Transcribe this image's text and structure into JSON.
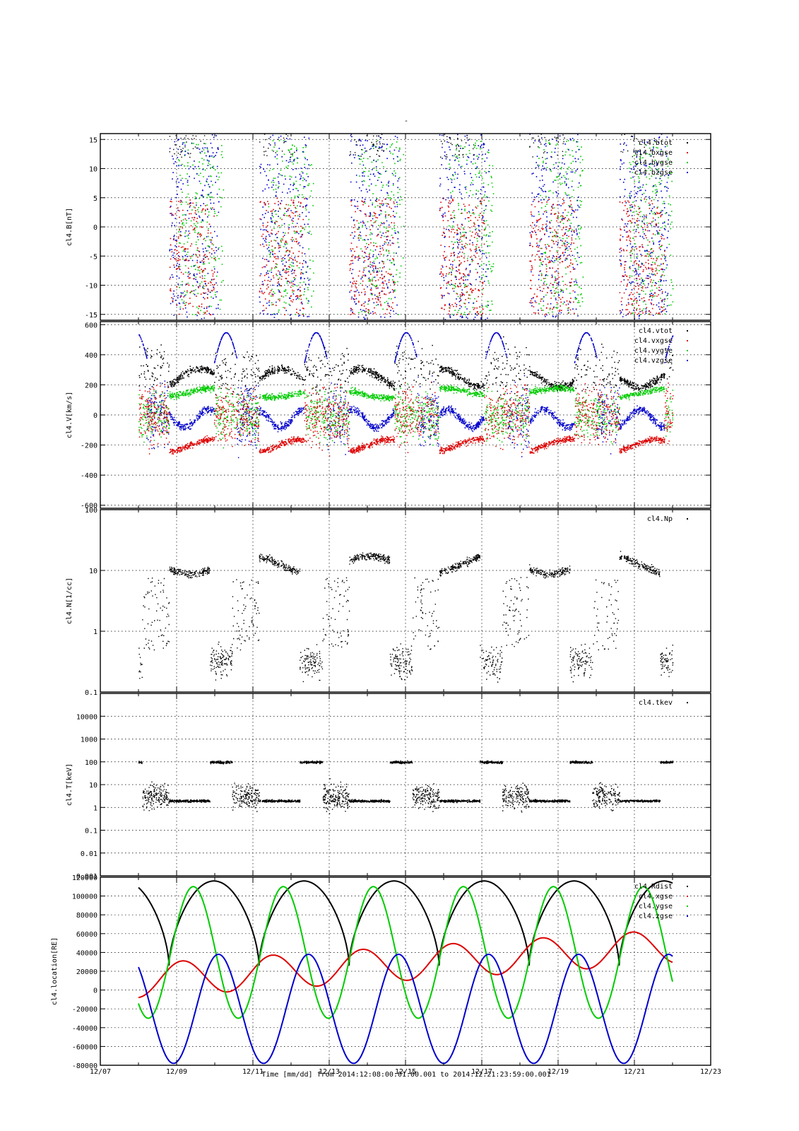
{
  "chart_data": [
    {
      "type": "scatter",
      "ylabel": "cl4.B[nT]",
      "ylim": [
        -16,
        16
      ],
      "yscale": "linear",
      "yticks": [
        "15",
        "10",
        "5",
        "0",
        "-5",
        "-10",
        "-15"
      ],
      "grid": true,
      "legend_position": "top-right",
      "series": [
        {
          "name": "cl4.btot",
          "color": "#000000"
        },
        {
          "name": "cl4.bxgse",
          "color": "#dd0000"
        },
        {
          "name": "cl4.bygse",
          "color": "#00cc00"
        },
        {
          "name": "cl4.bzgse",
          "color": "#0000cc"
        }
      ]
    },
    {
      "type": "scatter",
      "ylabel": "cl4.V[km/s]",
      "ylim": [
        -620,
        620
      ],
      "yscale": "linear",
      "yticks": [
        "600",
        "400",
        "200",
        "0",
        "-200",
        "-400",
        "-600"
      ],
      "grid": true,
      "legend_position": "top-right",
      "series": [
        {
          "name": "cl4.vtot",
          "color": "#000000"
        },
        {
          "name": "cl4.vxgse",
          "color": "#dd0000"
        },
        {
          "name": "cl4.vygse",
          "color": "#00cc00"
        },
        {
          "name": "cl4.vzgse",
          "color": "#0000cc"
        }
      ]
    },
    {
      "type": "scatter",
      "ylabel": "cl4.N[1/cc]",
      "ylim": [
        0.1,
        100
      ],
      "yscale": "log",
      "yticks": [
        "100",
        "10",
        "1",
        "0.1"
      ],
      "grid": true,
      "legend_position": "top-right",
      "series": [
        {
          "name": "cl4.Np",
          "color": "#000000"
        }
      ]
    },
    {
      "type": "scatter",
      "ylabel": "cl4.T[keV]",
      "ylim": [
        0.001,
        100000
      ],
      "yscale": "log",
      "yticks": [
        "10000",
        "1000",
        "100",
        "10",
        "1",
        "0.1",
        "0.01",
        "0.001"
      ],
      "grid": true,
      "legend_position": "top-right",
      "series": [
        {
          "name": "cl4.tkev",
          "color": "#000000"
        }
      ]
    },
    {
      "type": "line",
      "ylabel": "cl4.location[RE]",
      "ylim": [
        -80000,
        120000
      ],
      "yscale": "linear",
      "yticks": [
        "120000",
        "100000",
        "80000",
        "60000",
        "40000",
        "20000",
        "0",
        "-20000",
        "-40000",
        "-60000",
        "-80000"
      ],
      "grid": true,
      "legend_position": "top-right",
      "series": [
        {
          "name": "cl4.Rdist",
          "color": "#000000"
        },
        {
          "name": "cl4.xgse",
          "color": "#dd0000"
        },
        {
          "name": "cl4.ygse",
          "color": "#00cc00"
        },
        {
          "name": "cl4.zgse",
          "color": "#0000cc"
        }
      ]
    }
  ],
  "x_axis": {
    "tick_labels": [
      "12/07",
      "12/09",
      "12/11",
      "12/13",
      "12/15",
      "12/17",
      "12/19",
      "12/21",
      "12/23"
    ],
    "xlabel": "Time [mm/dd]  from 2014:12:08:00:01:00.001  to  2014:12:21:23:59:00.001",
    "data_start": "12/08",
    "data_end": "12/22"
  },
  "title": "-"
}
